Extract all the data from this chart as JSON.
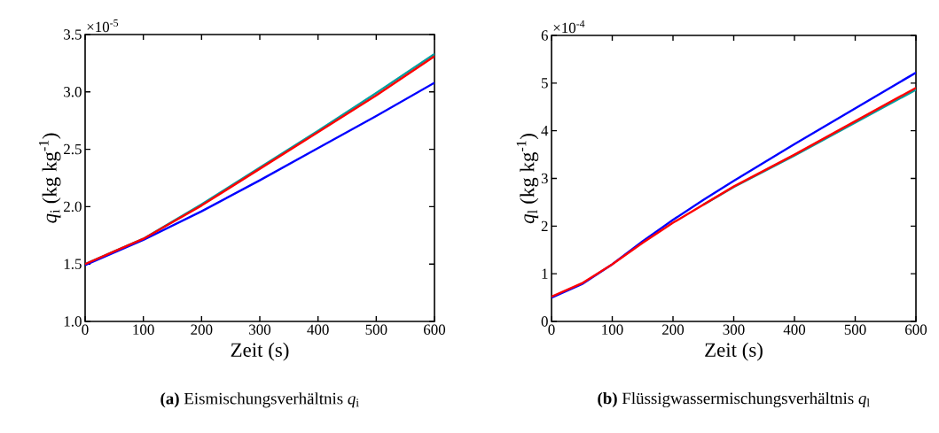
{
  "chart_data": [
    {
      "type": "line",
      "title": "**(a)** Eismischungsverhältnis *q*$_{i}$",
      "xlabel": "Zeit (s)",
      "ylabel": "*q*$_{i}$  (kg kg$^{-1}$)",
      "annotations": [
        "×10$^{-5}$"
      ],
      "x": [
        0,
        50,
        100,
        200,
        300,
        400,
        500,
        600
      ],
      "series": [
        {
          "color": "#00a0a0",
          "values": [
            1.5,
            1.61,
            1.72,
            2.02,
            2.34,
            2.66,
            2.99,
            3.33
          ]
        },
        {
          "color": "#0000ff",
          "values": [
            1.49,
            1.6,
            1.71,
            1.96,
            2.23,
            2.51,
            2.79,
            3.08
          ]
        },
        {
          "color": "#ff0000",
          "values": [
            1.5,
            1.61,
            1.72,
            2.01,
            2.33,
            2.65,
            2.97,
            3.31
          ]
        }
      ],
      "xlim": [
        0,
        600
      ],
      "ylim": [
        1.0,
        3.5
      ],
      "xticks": [
        0,
        100,
        200,
        300,
        400,
        500,
        600
      ],
      "yticks": [
        {
          "value": 1.0,
          "label": "1.0"
        },
        1.5,
        {
          "value": 2.0,
          "label": "2.0"
        },
        2.5,
        {
          "value": 3.0,
          "label": "3.0"
        },
        3.5
      ]
    },
    {
      "type": "line",
      "title": "**(b)** Flüssigwassermischungsverhältnis *q*$_{l}$",
      "xlabel": "Zeit (s)",
      "ylabel": "*q*$_{l}$  (kg kg$^{-1}$)",
      "annotations": [
        "×10$^{-4}$"
      ],
      "x": [
        0,
        50,
        100,
        150,
        200,
        250,
        300,
        400,
        500,
        600
      ],
      "series": [
        {
          "color": "#00a0a0",
          "values": [
            null,
            null,
            null,
            null,
            null,
            2.45,
            2.82,
            3.48,
            4.17,
            4.86
          ]
        },
        {
          "color": "#0000ff",
          "values": [
            0.5,
            0.78,
            1.2,
            1.68,
            2.13,
            2.55,
            2.95,
            3.72,
            4.47,
            5.22
          ]
        },
        {
          "color": "#ff0000",
          "values": [
            0.52,
            0.8,
            1.2,
            1.65,
            2.07,
            2.45,
            2.83,
            3.5,
            4.2,
            4.9
          ]
        }
      ],
      "xlim": [
        0,
        600
      ],
      "ylim": [
        0,
        6
      ],
      "xticks": [
        0,
        100,
        200,
        300,
        400,
        500,
        600
      ],
      "yticks": [
        0,
        1,
        2,
        3,
        4,
        5,
        6
      ]
    }
  ]
}
